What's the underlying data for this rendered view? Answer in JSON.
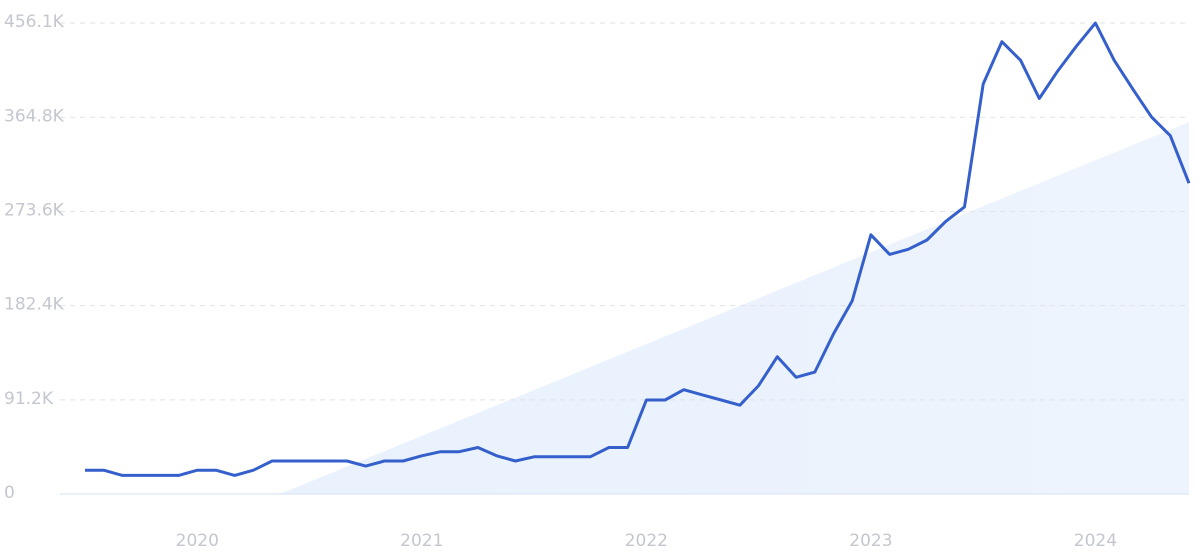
{
  "chart_data": {
    "type": "line",
    "categories": [
      null,
      null,
      null,
      null,
      null,
      null,
      "2020",
      null,
      null,
      null,
      null,
      null,
      null,
      null,
      null,
      null,
      null,
      null,
      "2021",
      null,
      null,
      null,
      null,
      null,
      null,
      null,
      null,
      null,
      null,
      null,
      "2022",
      null,
      null,
      null,
      null,
      null,
      null,
      null,
      null,
      null,
      null,
      null,
      "2023",
      null,
      null,
      null,
      null,
      null,
      null,
      null,
      null,
      null,
      null,
      null,
      "2024",
      null,
      null,
      null,
      null,
      null
    ],
    "series": [
      {
        "color": "#3560cc",
        "values": [
          23000,
          23000,
          18000,
          18000,
          18000,
          18000,
          23000,
          23000,
          18000,
          23000,
          32000,
          32000,
          32000,
          32000,
          32000,
          27000,
          32000,
          32000,
          37000,
          41000,
          41000,
          45000,
          37000,
          32000,
          36000,
          36000,
          36000,
          36000,
          45000,
          45000,
          91000,
          91000,
          101000,
          96000,
          91000,
          86000,
          105000,
          133000,
          113000,
          118000,
          155000,
          187000,
          251000,
          232000,
          237000,
          246000,
          264000,
          278000,
          397000,
          438000,
          420000,
          383000,
          410000,
          434000,
          456000,
          420000,
          392000,
          365000,
          347000,
          301000
        ]
      }
    ],
    "ylim": [
      0,
      456100
    ],
    "yticks": [
      0,
      {
        "value": 91200,
        "label": "91.2K"
      },
      {
        "value": 182400,
        "label": "182.4K"
      },
      {
        "value": 273600,
        "label": "273.6K"
      },
      {
        "value": 364800,
        "label": "364.8K"
      },
      {
        "value": 456100,
        "label": "456.1K"
      }
    ],
    "grid": true
  }
}
